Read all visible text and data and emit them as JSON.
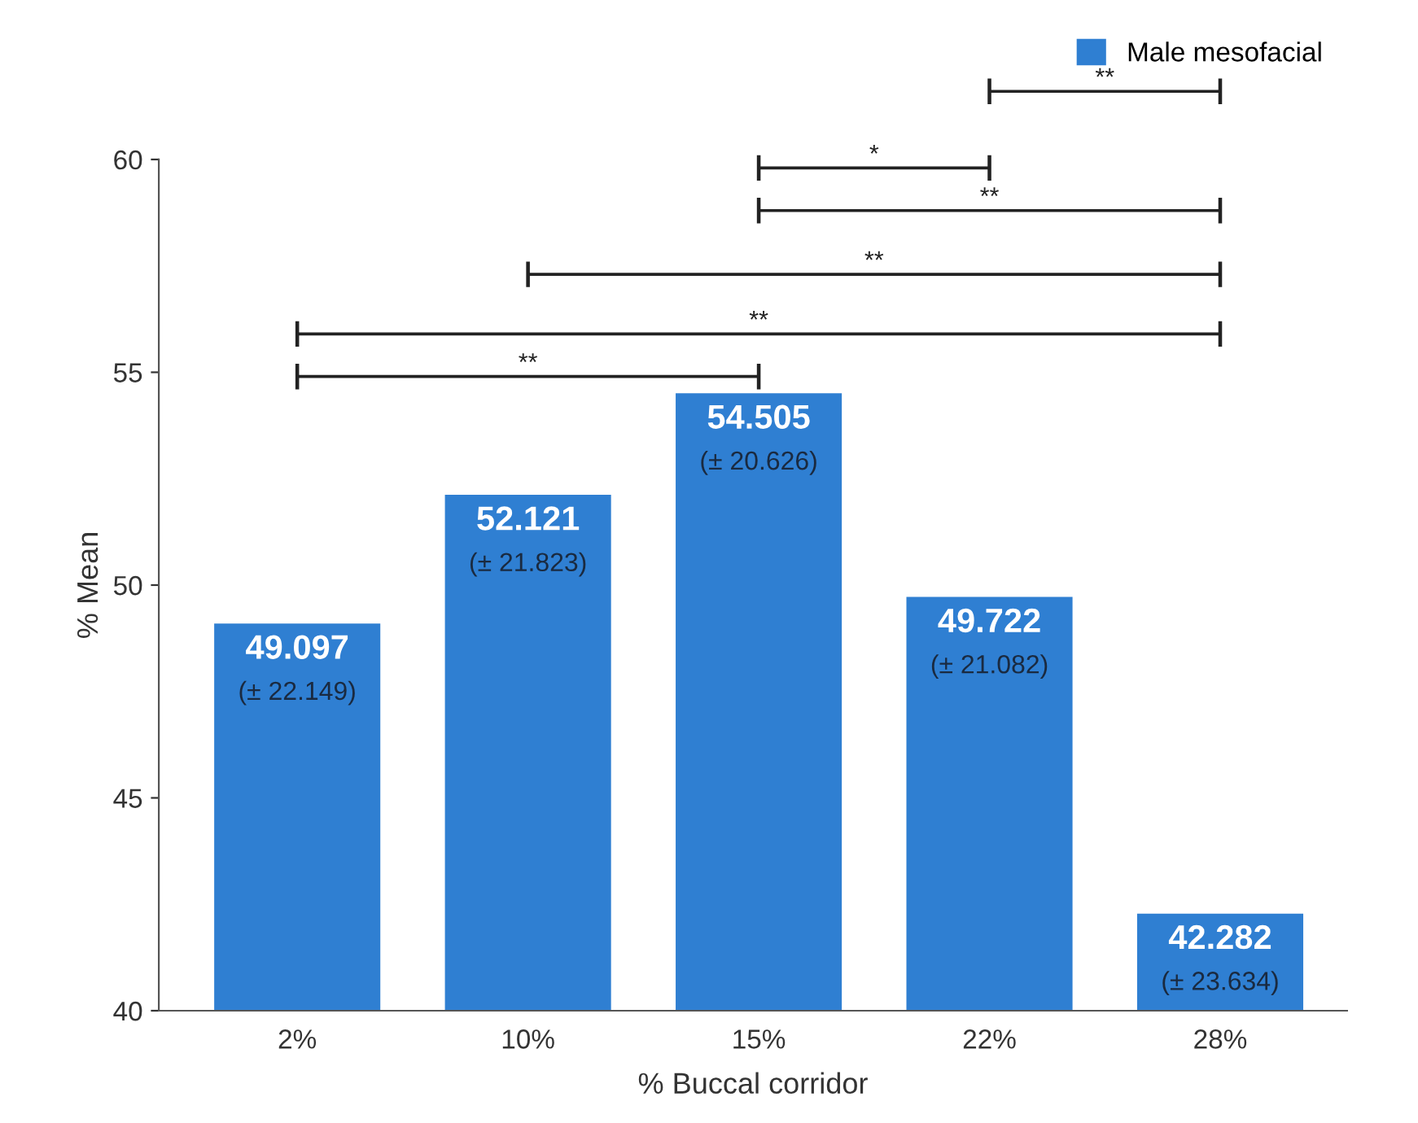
{
  "chart_data": {
    "type": "bar",
    "xlabel": "% Buccal corridor",
    "ylabel": "% Mean",
    "categories": [
      "2%",
      "10%",
      "15%",
      "22%",
      "28%"
    ],
    "series": [
      {
        "name": "Male mesofacial",
        "color": "#2f7fd2",
        "values": [
          49.097,
          52.121,
          54.505,
          49.722,
          42.282
        ],
        "value_labels": [
          "49.097\n(± 22.149)",
          "52.121\n(± 21.823)",
          "54.505\n(± 20.626)",
          "49.722\n(± 21.082)",
          "42.282\n(± 23.634)"
        ]
      }
    ],
    "ylim": [
      40,
      60
    ],
    "yticks": [
      40,
      45,
      50,
      55,
      60
    ],
    "grid": false,
    "legend": "top right",
    "annotations": [
      "**",
      "*",
      "**",
      "**",
      "**",
      "**"
    ]
  }
}
